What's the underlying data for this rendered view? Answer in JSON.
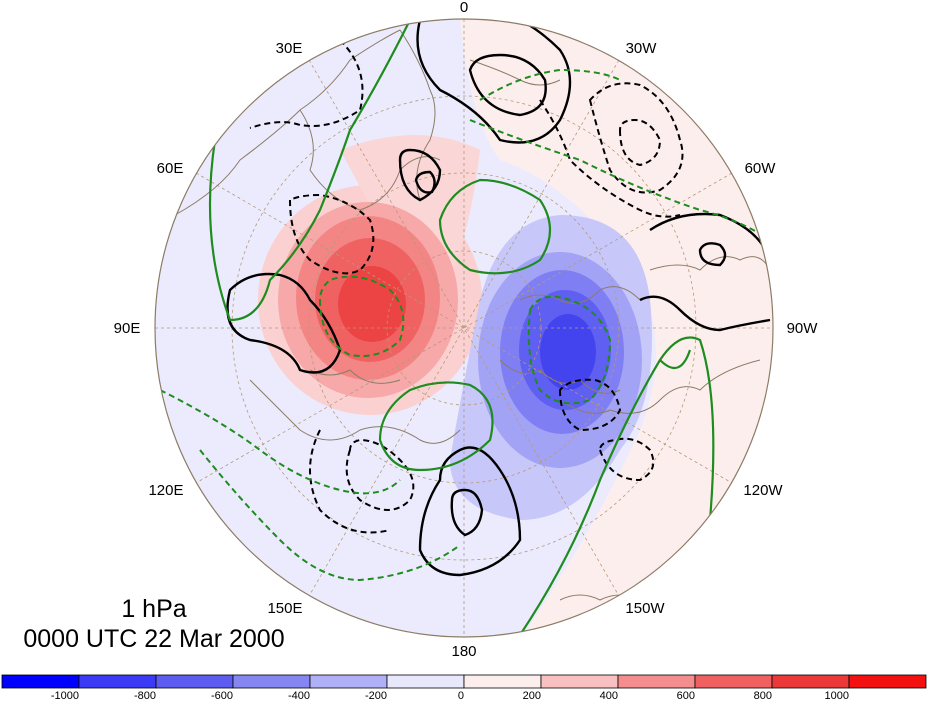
{
  "map": {
    "projection": "polar-stereographic-north",
    "longitude_labels": {
      "top": "0",
      "top_right_1": "30W",
      "top_right_2": "60W",
      "right": "90W",
      "bottom_right_1": "120W",
      "bottom_right_2": "150W",
      "bottom": "180",
      "bottom_left_2": "150E",
      "bottom_left_1": "120E",
      "left": "90E",
      "top_left_2": "60E",
      "top_left_1": "30E"
    },
    "level_label": "1 hPa",
    "time_label": "0000 UTC 22 Mar 2000",
    "colors": {
      "positive_anomaly": "#f03c3c",
      "negative_anomaly": "#3c3cf0",
      "solid_contour": "#000000",
      "dashed_contour": "#000000",
      "green_contour": "#1e8c1e",
      "coastline": "#8c7c66"
    }
  },
  "colorbar": {
    "ticks": [
      "-1000",
      "-800",
      "-600",
      "-400",
      "-200",
      "0",
      "200",
      "400",
      "600",
      "800",
      "1000"
    ],
    "colors": [
      "#0000ff",
      "#3b3bf5",
      "#5c5cf0",
      "#8686f3",
      "#b0b0f8",
      "#e8e8fc",
      "#fdeeee",
      "#f8c0c0",
      "#f48e8e",
      "#f06060",
      "#eb3838",
      "#f21010"
    ]
  }
}
